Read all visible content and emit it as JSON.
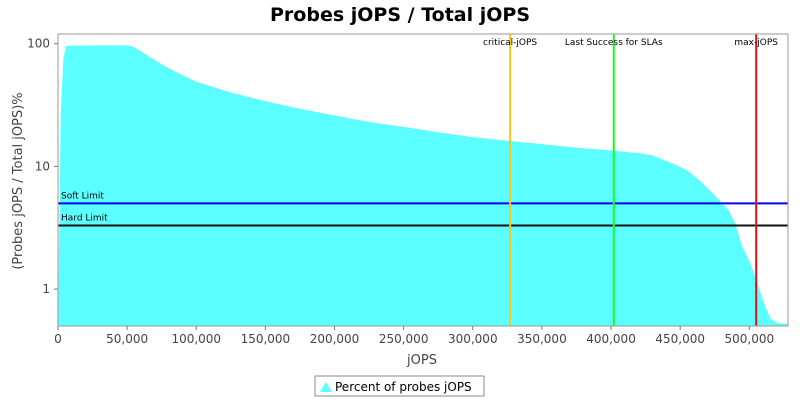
{
  "chart_data": {
    "type": "area",
    "title": "Probes jOPS / Total jOPS",
    "xlabel": "jOPS",
    "ylabel": "(Probes jOPS / Total jOPS)%",
    "xlim": [
      0,
      528000
    ],
    "ylim": [
      0.5,
      120
    ],
    "yscale": "log",
    "grid": false,
    "legend_position": "bottom",
    "x_ticks": [
      0,
      50000,
      100000,
      150000,
      200000,
      250000,
      300000,
      350000,
      400000,
      450000,
      500000
    ],
    "x_tick_labels": [
      "0",
      "50,000",
      "100,000",
      "150,000",
      "200,000",
      "250,000",
      "300,000",
      "350,000",
      "400,000",
      "450,000",
      "500,000"
    ],
    "y_ticks": [
      1,
      10,
      100
    ],
    "y_tick_labels": [
      "1",
      "10",
      "100"
    ],
    "series": [
      {
        "name": "Percent of probes jOPS",
        "color": "#5cffff",
        "x": [
          0,
          2000,
          4000,
          6000,
          10000,
          30000,
          50000,
          55000,
          65000,
          75000,
          85000,
          100000,
          125000,
          150000,
          175000,
          200000,
          225000,
          250000,
          275000,
          300000,
          325000,
          350000,
          375000,
          400000,
          420000,
          430000,
          445000,
          455000,
          465000,
          475000,
          485000,
          490000,
          495000,
          500000,
          505000,
          510000,
          515000,
          520000,
          528000
        ],
        "y": [
          0.5,
          28,
          78,
          96,
          96.5,
          97,
          97,
          94,
          80,
          68,
          59,
          49,
          40,
          34,
          29.5,
          26,
          23,
          21,
          19,
          17.3,
          16.2,
          15.2,
          14.2,
          13.5,
          12.8,
          12.3,
          10.5,
          9.3,
          7.5,
          5.8,
          4.4,
          3.4,
          2.2,
          1.7,
          1.2,
          0.8,
          0.58,
          0.53,
          0.52
        ]
      }
    ],
    "vertical_markers": [
      {
        "label": "critical-jOPS",
        "x": 327000,
        "color": "#ffc41a"
      },
      {
        "label": "Last Success for SLAs",
        "x": 402000,
        "color": "#1aff1a"
      },
      {
        "label": "max-jOPS",
        "x": 505000,
        "color": "#dd1111"
      }
    ],
    "horizontal_markers": [
      {
        "label": "Soft Limit",
        "y": 5,
        "color": "#0000ee"
      },
      {
        "label": "Hard Limit",
        "y": 3.3,
        "color": "#111111"
      }
    ]
  }
}
